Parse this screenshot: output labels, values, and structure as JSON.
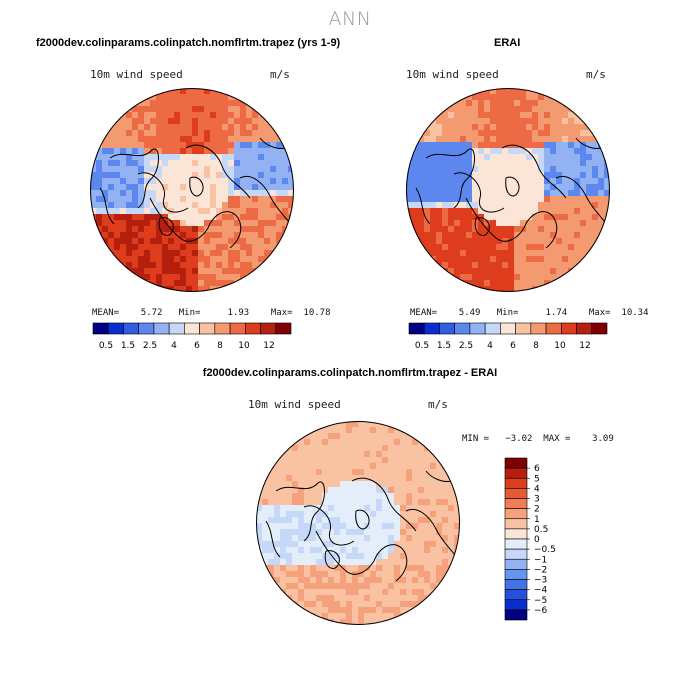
{
  "page_title": "ANN",
  "colors": {
    "abs_scale": [
      "#000080",
      "#0a2dd1",
      "#2f5fe0",
      "#5b87ee",
      "#93b2f3",
      "#c6d8f7",
      "#fbe5d6",
      "#f9c2a2",
      "#f39a70",
      "#ec6b45",
      "#dd3d1c",
      "#b51f0e",
      "#7f0000"
    ],
    "diff_scale": [
      "#000080",
      "#0a2dd1",
      "#2451dc",
      "#4274e6",
      "#6694ee",
      "#93b2f3",
      "#c6d8f7",
      "#e4eefb",
      "#fbe5d6",
      "#f9c2a2",
      "#f5a17c",
      "#ef7d56",
      "#e65a33",
      "#d7401b",
      "#b71e0d",
      "#7f0000"
    ],
    "coast": "#000000",
    "ocean_edge": "#000000"
  },
  "chart_data": [
    {
      "type": "heatmap",
      "id": "model",
      "title": "f2000dev.colinparams.colinpatch.nomflrtm.trapez (yrs 1-9)",
      "variable": "10m wind speed",
      "units": "m/s",
      "mean_label": "MEAN=",
      "mean": "5.72",
      "min_label": "Min=",
      "min": "1.93",
      "max_label": "Max=",
      "max": "10.78",
      "colorbar_ticks": [
        "0.5",
        "1.5",
        "2.5",
        "4",
        "6",
        "8",
        "10",
        "12"
      ],
      "projection": "north polar stereographic"
    },
    {
      "type": "heatmap",
      "id": "obs",
      "title": "ERAI",
      "variable": "10m wind speed",
      "units": "m/s",
      "mean_label": "MEAN=",
      "mean": "5.49",
      "min_label": "Min=",
      "min": "1.74",
      "max_label": "Max=",
      "max": "10.34",
      "colorbar_ticks": [
        "0.5",
        "1.5",
        "2.5",
        "4",
        "6",
        "8",
        "10",
        "12"
      ],
      "projection": "north polar stereographic"
    },
    {
      "type": "heatmap",
      "id": "diff",
      "title": "f2000dev.colinparams.colinpatch.nomflrtm.trapez - ERAI",
      "variable": "10m wind speed",
      "units": "m/s",
      "min_label": "MIN =",
      "min": "−3.02",
      "max_label": "MAX =",
      "max": "3.09",
      "colorbar_ticks": [
        "6",
        "5",
        "4",
        "3",
        "2",
        "1",
        "0.5",
        "0",
        "−0.5",
        "−1",
        "−2",
        "−3",
        "−4",
        "−5",
        "−6"
      ],
      "projection": "north polar stereographic"
    }
  ]
}
